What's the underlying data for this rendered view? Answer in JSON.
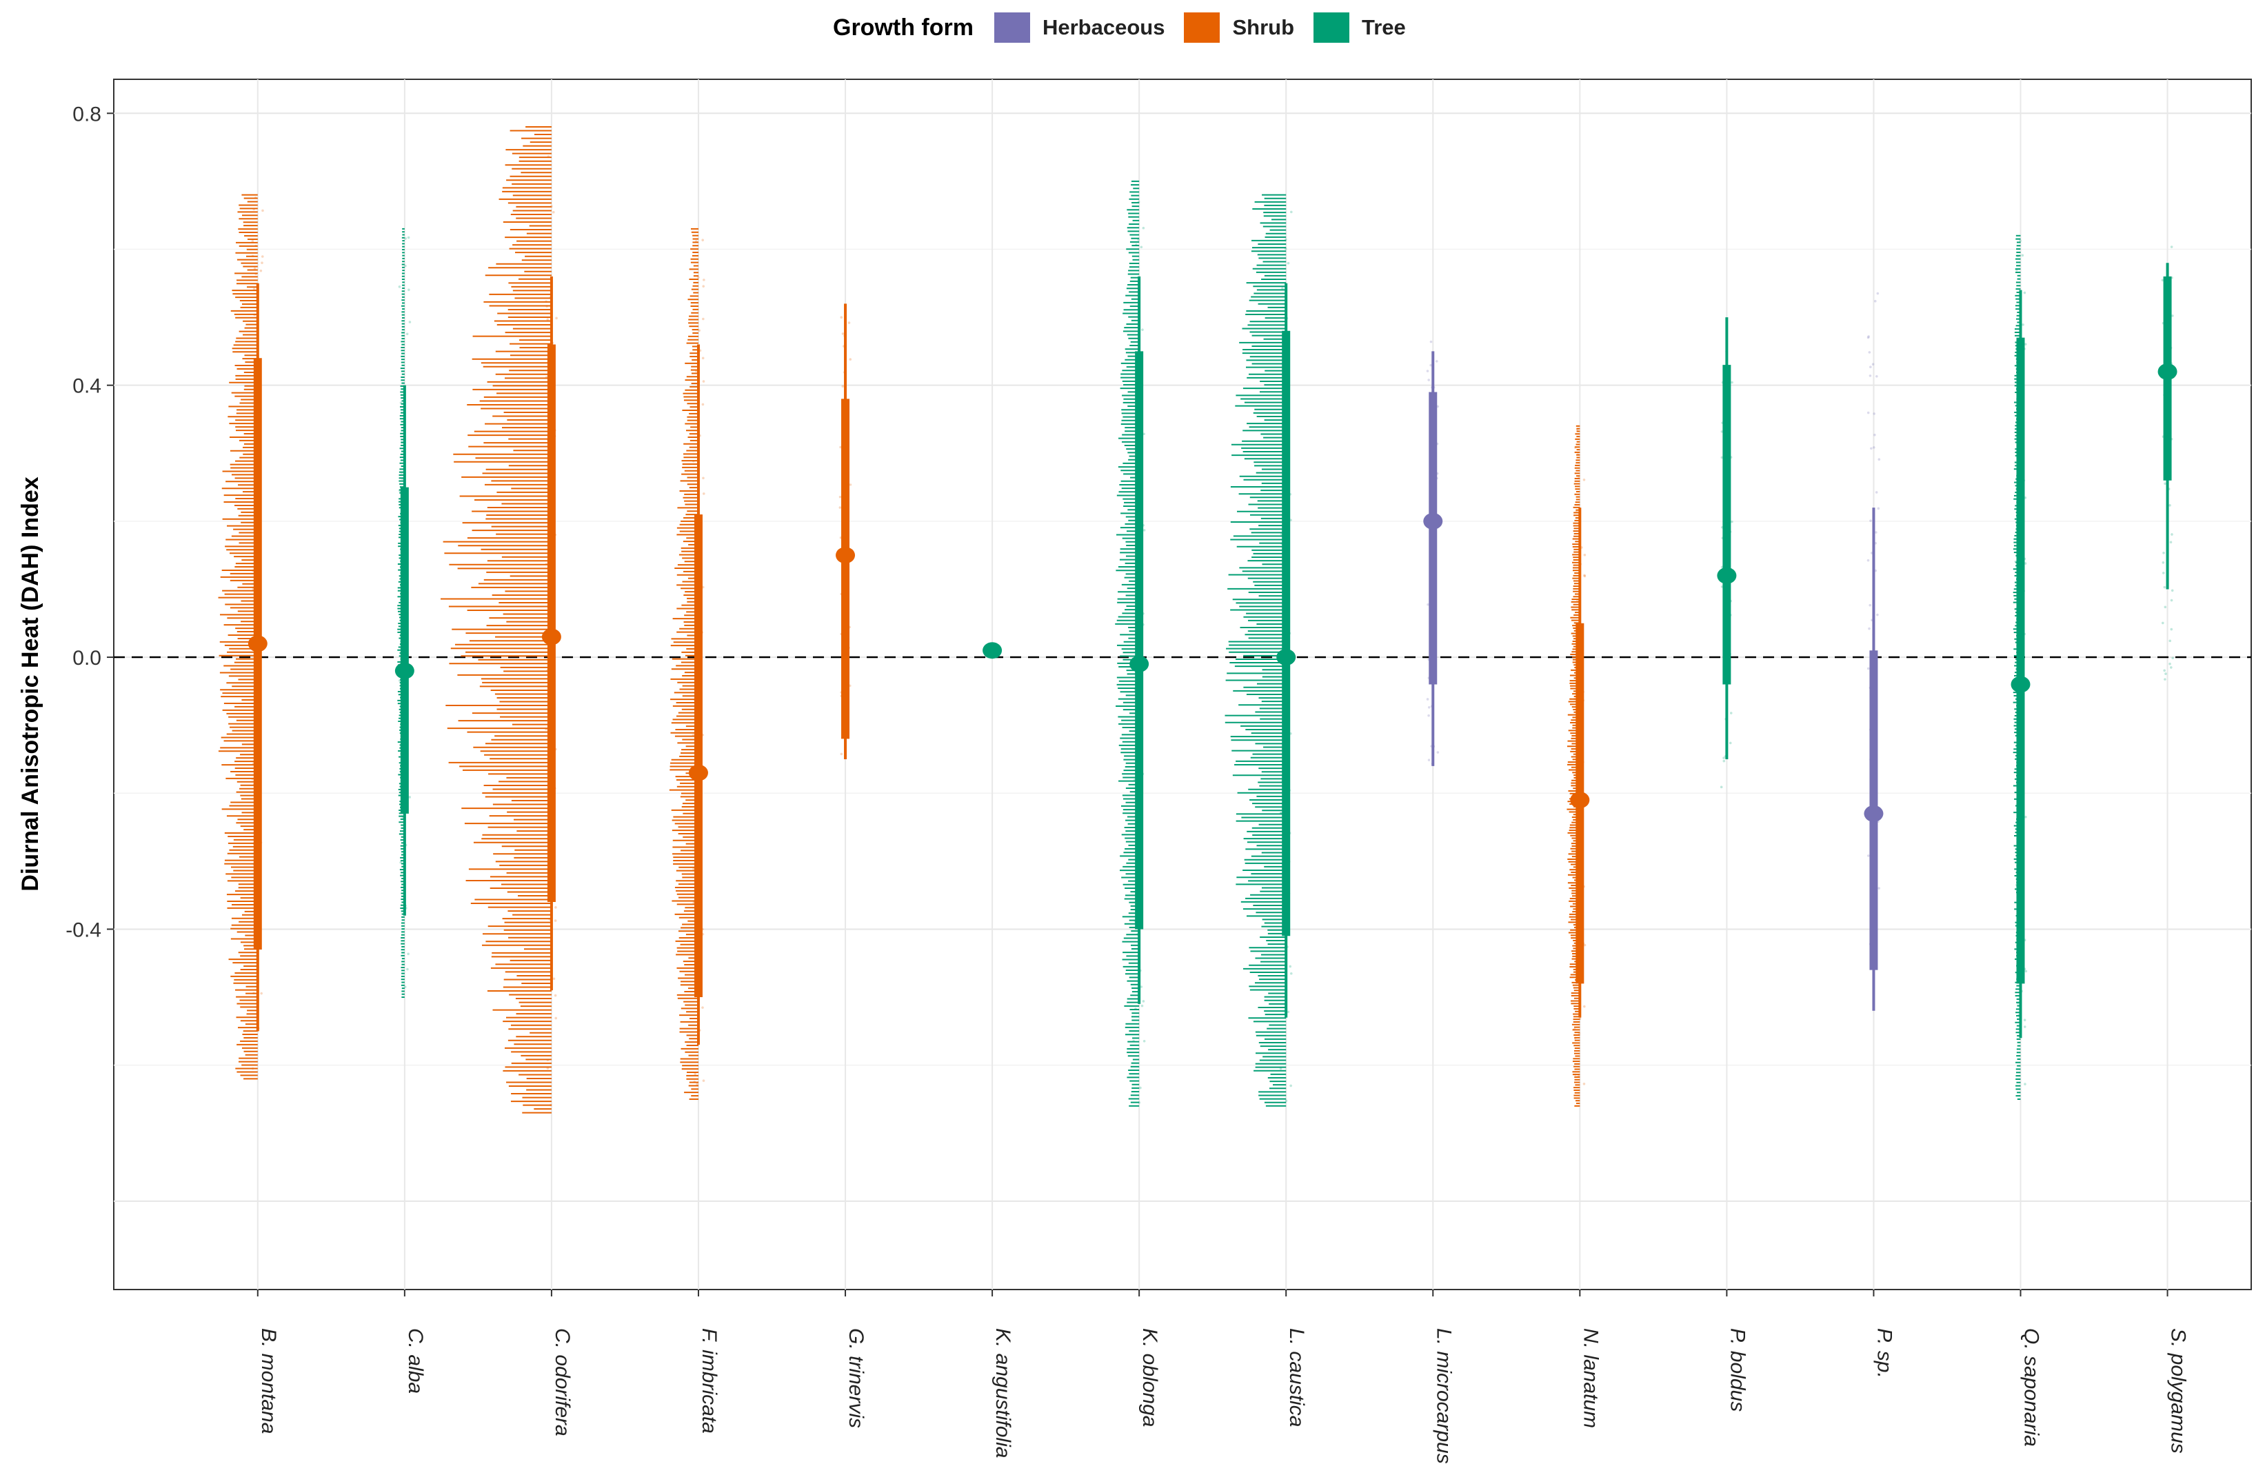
{
  "chart_data": {
    "type": "violin",
    "ylabel": "Diurnal Anisotropic Heat (DAH) Index",
    "xlabel": "",
    "ylim": [
      -0.93,
      0.85
    ],
    "yticks": [
      -0.4,
      0.0,
      0.4,
      0.8
    ],
    "ytick_labels": [
      "-0.4",
      "0.0",
      "0.4",
      "0.8"
    ],
    "reference_line": 0.0,
    "legend": {
      "title": "Growth form",
      "position": "top",
      "entries": [
        {
          "label": "Herbaceous",
          "color": "#7570B3"
        },
        {
          "label": "Shrub",
          "color": "#E66101"
        },
        {
          "label": "Tree",
          "color": "#009E73"
        }
      ]
    },
    "species": [
      {
        "label": "B. montana",
        "form": "Shrub",
        "median": 0.02,
        "q25": -0.43,
        "q75": 0.44,
        "wlo": -0.55,
        "whi": 0.55,
        "min": -0.62,
        "max": 0.68,
        "spread": 0.35
      },
      {
        "label": "C. alba",
        "form": "Tree",
        "median": -0.02,
        "q25": -0.23,
        "q75": 0.25,
        "wlo": -0.38,
        "whi": 0.4,
        "min": -0.5,
        "max": 0.63,
        "spread": 0.05
      },
      {
        "label": "C. odorifera",
        "form": "Shrub",
        "median": 0.03,
        "q25": -0.36,
        "q75": 0.46,
        "wlo": -0.49,
        "whi": 0.56,
        "min": -0.67,
        "max": 0.78,
        "spread": 1.0
      },
      {
        "label": "F. imbricata",
        "form": "Shrub",
        "median": -0.17,
        "q25": -0.5,
        "q75": 0.21,
        "wlo": -0.57,
        "whi": 0.46,
        "min": -0.65,
        "max": 0.63,
        "spread": 0.25
      },
      {
        "label": "G. trinervis",
        "form": "Shrub",
        "median": 0.15,
        "q25": -0.12,
        "q75": 0.38,
        "wlo": -0.15,
        "whi": 0.52,
        "min": -0.15,
        "max": 0.52,
        "spread": 0.0
      },
      {
        "label": "K. angustifolia",
        "form": "Tree",
        "median": 0.01,
        "q25": 0.005,
        "q75": 0.015,
        "wlo": 0.0,
        "whi": 0.02,
        "min": 0.0,
        "max": 0.02,
        "spread": 0.0
      },
      {
        "label": "K. oblonga",
        "form": "Tree",
        "median": -0.01,
        "q25": -0.4,
        "q75": 0.45,
        "wlo": -0.51,
        "whi": 0.56,
        "min": -0.66,
        "max": 0.7,
        "spread": 0.2
      },
      {
        "label": "L. caustica",
        "form": "Tree",
        "median": 0.0,
        "q25": -0.41,
        "q75": 0.48,
        "wlo": -0.53,
        "whi": 0.55,
        "min": -0.66,
        "max": 0.68,
        "spread": 0.55
      },
      {
        "label": "L. microcarpus",
        "form": "Herbaceous",
        "median": 0.2,
        "q25": -0.04,
        "q75": 0.39,
        "wlo": -0.16,
        "whi": 0.45,
        "min": -0.18,
        "max": 0.47,
        "spread": 0.0
      },
      {
        "label": "N. lanatum",
        "form": "Shrub",
        "median": -0.21,
        "q25": -0.48,
        "q75": 0.05,
        "wlo": -0.53,
        "whi": 0.22,
        "min": -0.66,
        "max": 0.34,
        "spread": 0.1
      },
      {
        "label": "P. boldus",
        "form": "Tree",
        "median": 0.12,
        "q25": -0.04,
        "q75": 0.43,
        "wlo": -0.15,
        "whi": 0.5,
        "min": -0.2,
        "max": 0.52,
        "spread": 0.0
      },
      {
        "label": "P. sp.",
        "form": "Herbaceous",
        "median": -0.23,
        "q25": -0.46,
        "q75": 0.01,
        "wlo": -0.52,
        "whi": 0.22,
        "min": -0.55,
        "max": 0.54,
        "spread": 0.0
      },
      {
        "label": "Q. saponaria",
        "form": "Tree",
        "median": -0.04,
        "q25": -0.48,
        "q75": 0.47,
        "wlo": -0.56,
        "whi": 0.54,
        "min": -0.65,
        "max": 0.62,
        "spread": 0.05
      },
      {
        "label": "S. polygamus",
        "form": "Tree",
        "median": 0.42,
        "q25": 0.26,
        "q75": 0.56,
        "wlo": 0.1,
        "whi": 0.58,
        "min": -0.05,
        "max": 0.62,
        "spread": 0.0
      }
    ]
  }
}
